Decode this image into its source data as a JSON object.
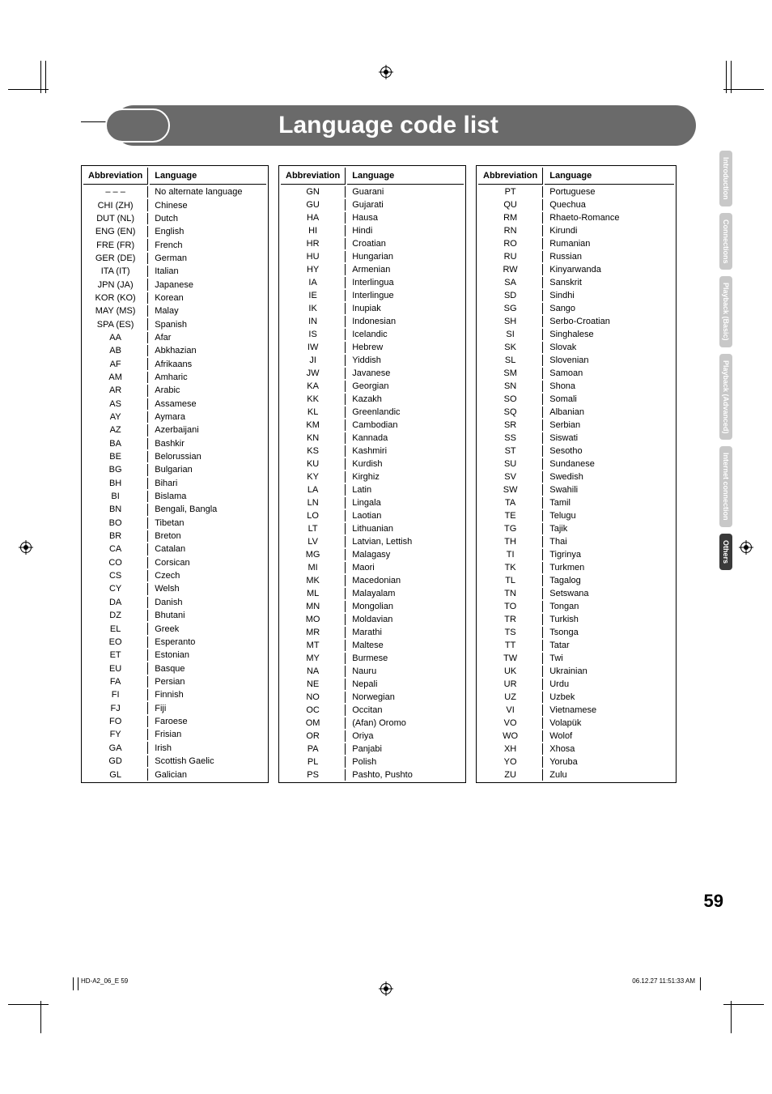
{
  "title": "Language code list",
  "page_number": "59",
  "headers": {
    "abbr": "Abbreviation",
    "lang": "Language"
  },
  "side_tabs": [
    {
      "label": "Introduction",
      "active": false
    },
    {
      "label": "Connections",
      "active": false
    },
    {
      "label": "Playback (Basic)",
      "active": false
    },
    {
      "label": "Playback (Advanced)",
      "active": false
    },
    {
      "label": "Internet connection",
      "active": false
    },
    {
      "label": "Others",
      "active": true
    }
  ],
  "footer": {
    "left": "HD-A2_06_E   59",
    "right": "06.12.27   11:51:33 AM"
  },
  "columns": [
    [
      [
        "– – –",
        "No alternate language"
      ],
      [
        "CHI (ZH)",
        "Chinese"
      ],
      [
        "DUT (NL)",
        "Dutch"
      ],
      [
        "ENG (EN)",
        "English"
      ],
      [
        "FRE (FR)",
        "French"
      ],
      [
        "GER (DE)",
        "German"
      ],
      [
        "ITA (IT)",
        "Italian"
      ],
      [
        "JPN (JA)",
        "Japanese"
      ],
      [
        "KOR (KO)",
        "Korean"
      ],
      [
        "MAY (MS)",
        "Malay"
      ],
      [
        "SPA (ES)",
        "Spanish"
      ],
      [
        "AA",
        "Afar"
      ],
      [
        "AB",
        "Abkhazian"
      ],
      [
        "AF",
        "Afrikaans"
      ],
      [
        "AM",
        "Amharic"
      ],
      [
        "AR",
        "Arabic"
      ],
      [
        "AS",
        "Assamese"
      ],
      [
        "AY",
        "Aymara"
      ],
      [
        "AZ",
        "Azerbaijani"
      ],
      [
        "BA",
        "Bashkir"
      ],
      [
        "BE",
        "Belorussian"
      ],
      [
        "BG",
        "Bulgarian"
      ],
      [
        "BH",
        "Bihari"
      ],
      [
        "BI",
        "Bislama"
      ],
      [
        "BN",
        "Bengali, Bangla"
      ],
      [
        "BO",
        "Tibetan"
      ],
      [
        "BR",
        "Breton"
      ],
      [
        "CA",
        "Catalan"
      ],
      [
        "CO",
        "Corsican"
      ],
      [
        "CS",
        "Czech"
      ],
      [
        "CY",
        "Welsh"
      ],
      [
        "DA",
        "Danish"
      ],
      [
        "DZ",
        "Bhutani"
      ],
      [
        "EL",
        "Greek"
      ],
      [
        "EO",
        "Esperanto"
      ],
      [
        "ET",
        "Estonian"
      ],
      [
        "EU",
        "Basque"
      ],
      [
        "FA",
        "Persian"
      ],
      [
        "FI",
        "Finnish"
      ],
      [
        "FJ",
        "Fiji"
      ],
      [
        "FO",
        "Faroese"
      ],
      [
        "FY",
        "Frisian"
      ],
      [
        "GA",
        "Irish"
      ],
      [
        "GD",
        "Scottish Gaelic"
      ],
      [
        "GL",
        "Galician"
      ]
    ],
    [
      [
        "GN",
        "Guarani"
      ],
      [
        "GU",
        "Gujarati"
      ],
      [
        "HA",
        "Hausa"
      ],
      [
        "HI",
        "Hindi"
      ],
      [
        "HR",
        "Croatian"
      ],
      [
        "HU",
        "Hungarian"
      ],
      [
        "HY",
        "Armenian"
      ],
      [
        "IA",
        "Interlingua"
      ],
      [
        "IE",
        "Interlingue"
      ],
      [
        "IK",
        "Inupiak"
      ],
      [
        "IN",
        "Indonesian"
      ],
      [
        "IS",
        "Icelandic"
      ],
      [
        "IW",
        "Hebrew"
      ],
      [
        "JI",
        "Yiddish"
      ],
      [
        "JW",
        "Javanese"
      ],
      [
        "KA",
        "Georgian"
      ],
      [
        "KK",
        "Kazakh"
      ],
      [
        "KL",
        "Greenlandic"
      ],
      [
        "KM",
        "Cambodian"
      ],
      [
        "KN",
        "Kannada"
      ],
      [
        "KS",
        "Kashmiri"
      ],
      [
        "KU",
        "Kurdish"
      ],
      [
        "KY",
        "Kirghiz"
      ],
      [
        "LA",
        "Latin"
      ],
      [
        "LN",
        "Lingala"
      ],
      [
        "LO",
        "Laotian"
      ],
      [
        "LT",
        "Lithuanian"
      ],
      [
        "LV",
        "Latvian, Lettish"
      ],
      [
        "MG",
        "Malagasy"
      ],
      [
        "MI",
        "Maori"
      ],
      [
        "MK",
        "Macedonian"
      ],
      [
        "ML",
        "Malayalam"
      ],
      [
        "MN",
        "Mongolian"
      ],
      [
        "MO",
        "Moldavian"
      ],
      [
        "MR",
        "Marathi"
      ],
      [
        "MT",
        "Maltese"
      ],
      [
        "MY",
        "Burmese"
      ],
      [
        "NA",
        "Nauru"
      ],
      [
        "NE",
        "Nepali"
      ],
      [
        "NO",
        "Norwegian"
      ],
      [
        "OC",
        "Occitan"
      ],
      [
        "OM",
        "(Afan) Oromo"
      ],
      [
        "OR",
        "Oriya"
      ],
      [
        "PA",
        "Panjabi"
      ],
      [
        "PL",
        "Polish"
      ],
      [
        "PS",
        "Pashto, Pushto"
      ]
    ],
    [
      [
        "PT",
        "Portuguese"
      ],
      [
        "QU",
        "Quechua"
      ],
      [
        "RM",
        "Rhaeto-Romance"
      ],
      [
        "RN",
        "Kirundi"
      ],
      [
        "RO",
        "Rumanian"
      ],
      [
        "RU",
        "Russian"
      ],
      [
        "RW",
        "Kinyarwanda"
      ],
      [
        "SA",
        "Sanskrit"
      ],
      [
        "SD",
        "Sindhi"
      ],
      [
        "SG",
        "Sango"
      ],
      [
        "SH",
        "Serbo-Croatian"
      ],
      [
        "SI",
        "Singhalese"
      ],
      [
        "SK",
        "Slovak"
      ],
      [
        "SL",
        "Slovenian"
      ],
      [
        "SM",
        "Samoan"
      ],
      [
        "SN",
        "Shona"
      ],
      [
        "SO",
        "Somali"
      ],
      [
        "SQ",
        "Albanian"
      ],
      [
        "SR",
        "Serbian"
      ],
      [
        "SS",
        "Siswati"
      ],
      [
        "ST",
        "Sesotho"
      ],
      [
        "SU",
        "Sundanese"
      ],
      [
        "SV",
        "Swedish"
      ],
      [
        "SW",
        "Swahili"
      ],
      [
        "TA",
        "Tamil"
      ],
      [
        "TE",
        "Telugu"
      ],
      [
        "TG",
        "Tajik"
      ],
      [
        "TH",
        "Thai"
      ],
      [
        "TI",
        "Tigrinya"
      ],
      [
        "TK",
        "Turkmen"
      ],
      [
        "TL",
        "Tagalog"
      ],
      [
        "TN",
        "Setswana"
      ],
      [
        "TO",
        "Tongan"
      ],
      [
        "TR",
        "Turkish"
      ],
      [
        "TS",
        "Tsonga"
      ],
      [
        "TT",
        "Tatar"
      ],
      [
        "TW",
        "Twi"
      ],
      [
        "UK",
        "Ukrainian"
      ],
      [
        "UR",
        "Urdu"
      ],
      [
        "UZ",
        "Uzbek"
      ],
      [
        "VI",
        "Vietnamese"
      ],
      [
        "VO",
        "Volapük"
      ],
      [
        "WO",
        "Wolof"
      ],
      [
        "XH",
        "Xhosa"
      ],
      [
        "YO",
        "Yoruba"
      ],
      [
        "ZU",
        "Zulu"
      ]
    ]
  ]
}
